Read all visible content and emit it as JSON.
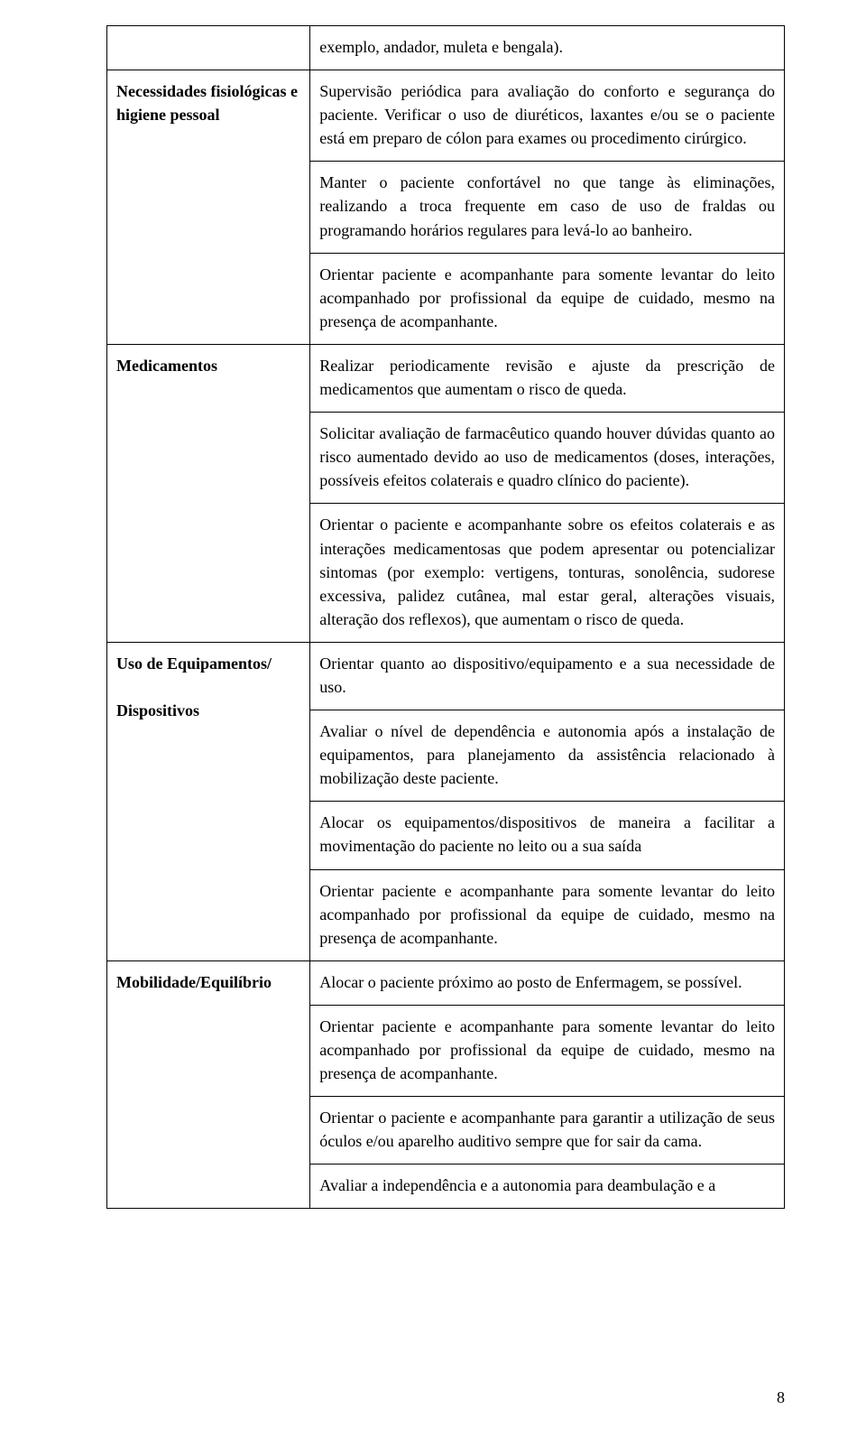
{
  "page_number": "8",
  "colors": {
    "text": "#000000",
    "background": "#ffffff",
    "border": "#000000"
  },
  "font": {
    "family": "Times New Roman",
    "size_pt": 14
  },
  "sections": [
    {
      "label": "",
      "items": [
        "exemplo, andador, muleta e bengala)."
      ]
    },
    {
      "label": "Necessidades fisiológicas e higiene pessoal",
      "items": [
        "Supervisão periódica para avaliação do conforto e segurança do paciente. Verificar o uso de diuréticos, laxantes e/ou se o paciente está em preparo de cólon para exames ou procedimento cirúrgico.",
        "Manter o paciente confortável no que tange às eliminações, realizando a troca frequente em caso de uso de fraldas ou programando horários regulares para levá-lo ao banheiro.",
        "Orientar paciente e acompanhante para somente levantar do leito acompanhado por profissional da equipe de cuidado, mesmo na presença de acompanhante."
      ]
    },
    {
      "label": "Medicamentos",
      "items": [
        "Realizar periodicamente revisão e ajuste da prescrição de medicamentos que aumentam o risco de queda.",
        "Solicitar avaliação de farmacêutico quando houver dúvidas quanto ao risco aumentado devido ao uso de medicamentos (doses, interações, possíveis efeitos colaterais e quadro clínico do paciente).",
        "Orientar o paciente e acompanhante sobre os efeitos colaterais e as interações medicamentosas que podem apresentar ou potencializar sintomas (por exemplo: vertigens, tonturas, sonolência, sudorese excessiva, palidez cutânea, mal estar geral, alterações visuais, alteração dos reflexos), que aumentam o risco de queda."
      ]
    },
    {
      "label": "Uso de Equipamentos/\n\nDispositivos",
      "items": [
        "Orientar quanto ao dispositivo/equipamento e a sua necessidade de uso.",
        "Avaliar o nível de dependência e autonomia após a instalação de equipamentos, para planejamento da assistência relacionado à mobilização deste paciente.",
        "Alocar os equipamentos/dispositivos de maneira a facilitar a movimentação do paciente no leito ou a sua saída",
        "Orientar paciente e acompanhante para somente levantar do leito acompanhado por profissional da equipe de cuidado, mesmo na presença de acompanhante."
      ]
    },
    {
      "label": "Mobilidade/Equilíbrio",
      "items": [
        "Alocar o paciente próximo ao posto de Enfermagem, se possível.",
        "Orientar paciente e acompanhante para somente levantar do leito acompanhado por profissional da equipe de cuidado, mesmo na presença de acompanhante.",
        "Orientar o paciente e acompanhante para garantir a utilização de seus óculos e/ou aparelho auditivo sempre que for sair da cama.",
        "Avaliar a independência e a autonomia para deambulação e a"
      ]
    }
  ]
}
